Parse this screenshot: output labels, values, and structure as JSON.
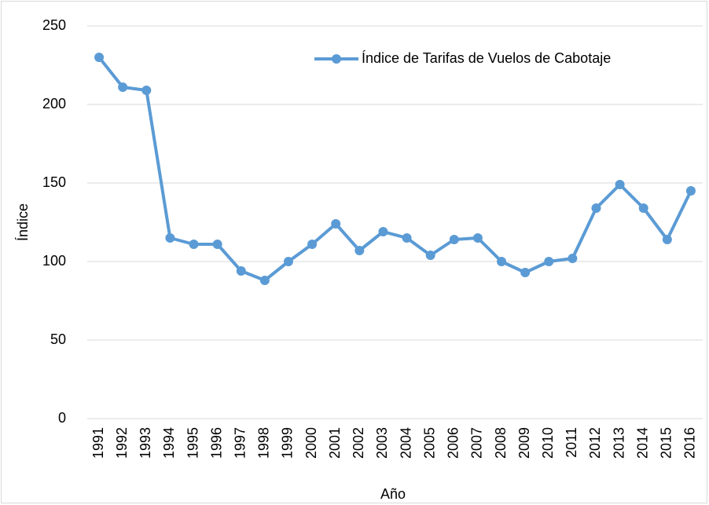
{
  "chart_data": {
    "type": "line",
    "x_label": "Año",
    "y_label": "Índice",
    "categories": [
      "1991",
      "1992",
      "1993",
      "1994",
      "1995",
      "1996",
      "1997",
      "1998",
      "1999",
      "2000",
      "2001",
      "2002",
      "2003",
      "2004",
      "2005",
      "2006",
      "2007",
      "2008",
      "2009",
      "2010",
      "2011",
      "2012",
      "2013",
      "2014",
      "2015",
      "2016"
    ],
    "series": [
      {
        "name": "Índice de Tarifas de Vuelos de Cabotaje",
        "color": "#5b9bd5",
        "values": [
          230,
          211,
          209,
          115,
          111,
          111,
          94,
          88,
          100,
          111,
          124,
          107,
          119,
          115,
          104,
          114,
          115,
          100,
          93,
          100,
          102,
          134,
          149,
          134,
          114,
          145
        ]
      }
    ],
    "ylim": [
      0,
      250
    ],
    "yticks": [
      0,
      50,
      100,
      150,
      200,
      250
    ],
    "grid": true,
    "legend": "upper right"
  }
}
